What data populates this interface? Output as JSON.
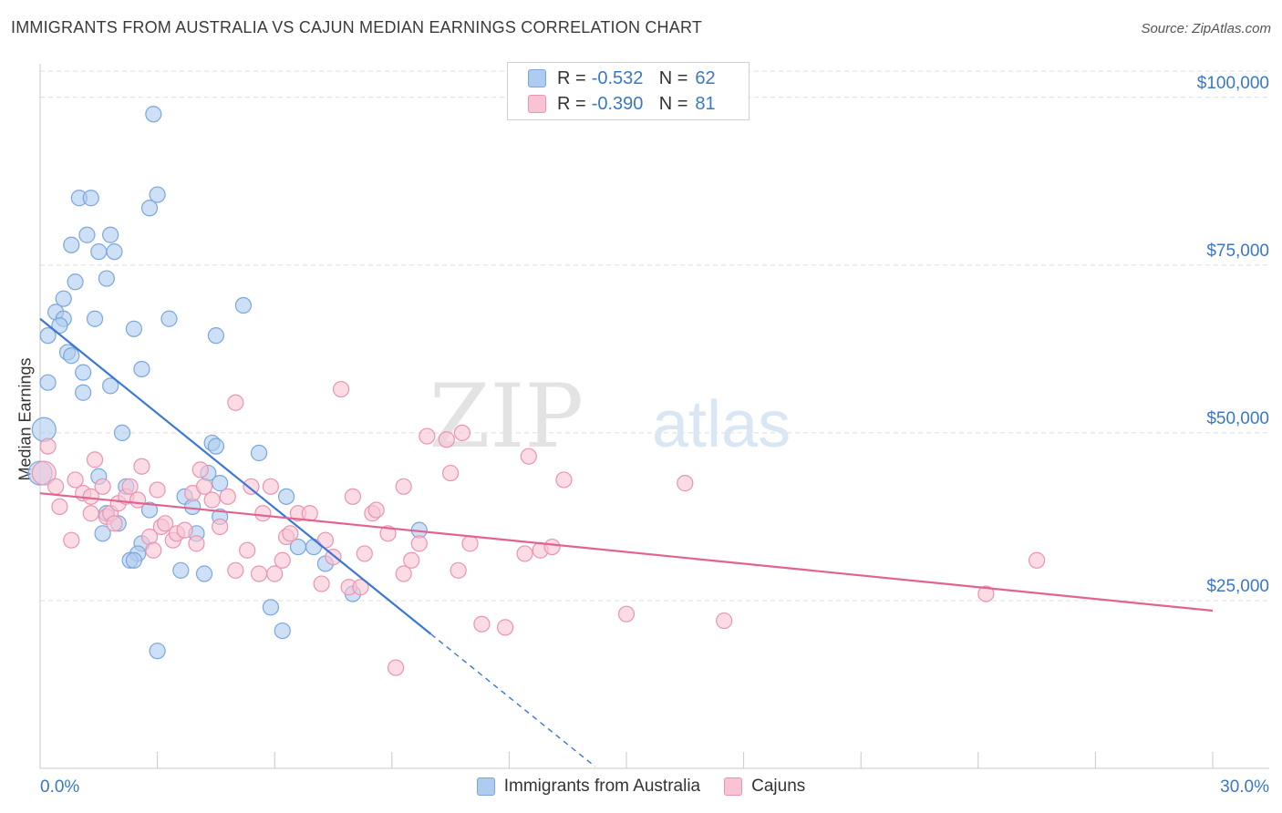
{
  "header": {
    "title": "IMMIGRANTS FROM AUSTRALIA VS CAJUN MEDIAN EARNINGS CORRELATION CHART",
    "source": "Source: ZipAtlas.com"
  },
  "legend_top": {
    "rows": [
      {
        "r_label": "R =",
        "r_value": "-0.532",
        "n_label": "N =",
        "n_value": "62"
      },
      {
        "r_label": "R =",
        "r_value": "-0.390",
        "n_label": "N =",
        "n_value": "81"
      }
    ]
  },
  "legend_bottom": {
    "items": [
      {
        "label": "Immigrants from Australia"
      },
      {
        "label": "Cajuns"
      }
    ]
  },
  "colors": {
    "blue_fill": "#aecbf0",
    "blue_stroke": "#7aa6dc",
    "blue_line": "#3a78d4",
    "pink_fill": "#f8c4d4",
    "pink_stroke": "#eb93b0",
    "pink_line": "#e2638f",
    "axis_text": "#3a78c4",
    "watermark": "#e3e3e3"
  },
  "watermark": {
    "zip": "ZIP",
    "atlas": "atlas"
  },
  "chart_data": {
    "type": "scatter",
    "ylabel": "Median Earnings",
    "xlim": [
      0,
      30
    ],
    "ylim": [
      0,
      105000
    ],
    "x_tick_labels": [
      {
        "x": 0,
        "label": "0.0%"
      },
      {
        "x": 30,
        "label": "30.0%"
      }
    ],
    "y_ticks": [
      {
        "y": 25000,
        "label": "$25,000"
      },
      {
        "y": 50000,
        "label": "$50,000"
      },
      {
        "y": 75000,
        "label": "$75,000"
      },
      {
        "y": 100000,
        "label": "$100,000"
      }
    ],
    "grid": true,
    "series": [
      {
        "name": "Immigrants from Australia",
        "color": "blue",
        "points": [
          [
            2.9,
            97500
          ],
          [
            1.0,
            85000
          ],
          [
            1.3,
            85000
          ],
          [
            3.0,
            85500
          ],
          [
            2.8,
            83500
          ],
          [
            1.2,
            79500
          ],
          [
            1.8,
            79500
          ],
          [
            0.8,
            78000
          ],
          [
            1.5,
            77000
          ],
          [
            1.9,
            77000
          ],
          [
            1.7,
            73000
          ],
          [
            0.9,
            72500
          ],
          [
            5.2,
            69000
          ],
          [
            0.6,
            70000
          ],
          [
            0.4,
            68000
          ],
          [
            0.6,
            67000
          ],
          [
            1.4,
            67000
          ],
          [
            3.3,
            67000
          ],
          [
            0.5,
            66000
          ],
          [
            2.4,
            65500
          ],
          [
            0.2,
            64500
          ],
          [
            4.5,
            64500
          ],
          [
            0.7,
            62000
          ],
          [
            0.8,
            61500
          ],
          [
            1.1,
            59000
          ],
          [
            2.6,
            59500
          ],
          [
            0.2,
            57500
          ],
          [
            1.8,
            57000
          ],
          [
            1.1,
            56000
          ],
          [
            0.1,
            50500
          ],
          [
            2.1,
            50000
          ],
          [
            4.4,
            48500
          ],
          [
            4.5,
            48000
          ],
          [
            5.6,
            47000
          ],
          [
            4.3,
            44000
          ],
          [
            4.6,
            42500
          ],
          [
            1.5,
            43500
          ],
          [
            2.2,
            42000
          ],
          [
            3.7,
            40500
          ],
          [
            6.3,
            40500
          ],
          [
            2.8,
            38500
          ],
          [
            4.6,
            37500
          ],
          [
            2.0,
            36500
          ],
          [
            1.6,
            35000
          ],
          [
            4.0,
            35000
          ],
          [
            9.7,
            35500
          ],
          [
            2.6,
            33500
          ],
          [
            6.6,
            33000
          ],
          [
            7.0,
            33000
          ],
          [
            2.5,
            32000
          ],
          [
            2.3,
            31000
          ],
          [
            2.4,
            31000
          ],
          [
            7.3,
            30500
          ],
          [
            3.6,
            29500
          ],
          [
            4.2,
            29000
          ],
          [
            8.0,
            26000
          ],
          [
            5.9,
            24000
          ],
          [
            6.2,
            20500
          ],
          [
            3.0,
            17500
          ],
          [
            0.0,
            44000
          ],
          [
            1.7,
            38000
          ],
          [
            3.9,
            39000
          ]
        ]
      },
      {
        "name": "Cajuns",
        "color": "pink",
        "points": [
          [
            0.2,
            48000
          ],
          [
            0.1,
            44000
          ],
          [
            0.4,
            42000
          ],
          [
            0.5,
            39000
          ],
          [
            0.9,
            43000
          ],
          [
            1.1,
            41000
          ],
          [
            1.3,
            40500
          ],
          [
            1.3,
            38000
          ],
          [
            1.4,
            46000
          ],
          [
            1.6,
            42000
          ],
          [
            1.7,
            37500
          ],
          [
            1.8,
            38000
          ],
          [
            1.9,
            36500
          ],
          [
            2.0,
            39500
          ],
          [
            2.2,
            40500
          ],
          [
            2.3,
            42000
          ],
          [
            2.5,
            40000
          ],
          [
            2.6,
            45000
          ],
          [
            2.8,
            34500
          ],
          [
            2.9,
            32500
          ],
          [
            3.1,
            36000
          ],
          [
            3.2,
            36500
          ],
          [
            3.4,
            34000
          ],
          [
            3.5,
            35000
          ],
          [
            3.7,
            35500
          ],
          [
            3.9,
            41000
          ],
          [
            4.0,
            33500
          ],
          [
            4.1,
            44500
          ],
          [
            4.2,
            42000
          ],
          [
            4.4,
            40000
          ],
          [
            4.6,
            36000
          ],
          [
            4.8,
            40500
          ],
          [
            5.0,
            29500
          ],
          [
            5.0,
            54500
          ],
          [
            5.3,
            32500
          ],
          [
            5.4,
            42000
          ],
          [
            5.6,
            29000
          ],
          [
            5.7,
            38000
          ],
          [
            5.9,
            42000
          ],
          [
            6.0,
            29000
          ],
          [
            6.3,
            34500
          ],
          [
            6.4,
            35000
          ],
          [
            6.6,
            38000
          ],
          [
            6.9,
            38000
          ],
          [
            7.2,
            27500
          ],
          [
            7.3,
            34000
          ],
          [
            7.5,
            31500
          ],
          [
            7.7,
            56500
          ],
          [
            7.9,
            27000
          ],
          [
            8.0,
            40500
          ],
          [
            8.2,
            27000
          ],
          [
            8.3,
            32000
          ],
          [
            8.5,
            38000
          ],
          [
            8.6,
            38500
          ],
          [
            8.9,
            35000
          ],
          [
            9.1,
            15000
          ],
          [
            9.3,
            29000
          ],
          [
            9.5,
            31000
          ],
          [
            9.7,
            33500
          ],
          [
            9.9,
            49500
          ],
          [
            10.4,
            49000
          ],
          [
            10.5,
            44000
          ],
          [
            10.7,
            29500
          ],
          [
            10.8,
            50000
          ],
          [
            11.3,
            21500
          ],
          [
            11.9,
            21000
          ],
          [
            12.4,
            32000
          ],
          [
            12.5,
            46500
          ],
          [
            12.8,
            32500
          ],
          [
            13.1,
            33000
          ],
          [
            13.4,
            43000
          ],
          [
            15.0,
            23000
          ],
          [
            16.5,
            42500
          ],
          [
            17.5,
            22000
          ],
          [
            24.2,
            26000
          ],
          [
            25.5,
            31000
          ],
          [
            9.3,
            42000
          ],
          [
            11.0,
            33500
          ],
          [
            6.2,
            31000
          ],
          [
            3.0,
            41500
          ],
          [
            0.8,
            34000
          ]
        ]
      }
    ],
    "trend_lines": [
      {
        "series": "Immigrants from Australia",
        "x0": 0.0,
        "y0": 67000,
        "x1": 10.0,
        "y1": 20000,
        "dashed_to_x": 14.2
      },
      {
        "series": "Cajuns",
        "x0": 0.0,
        "y0": 41000,
        "x1": 30.0,
        "y1": 23500
      }
    ]
  }
}
